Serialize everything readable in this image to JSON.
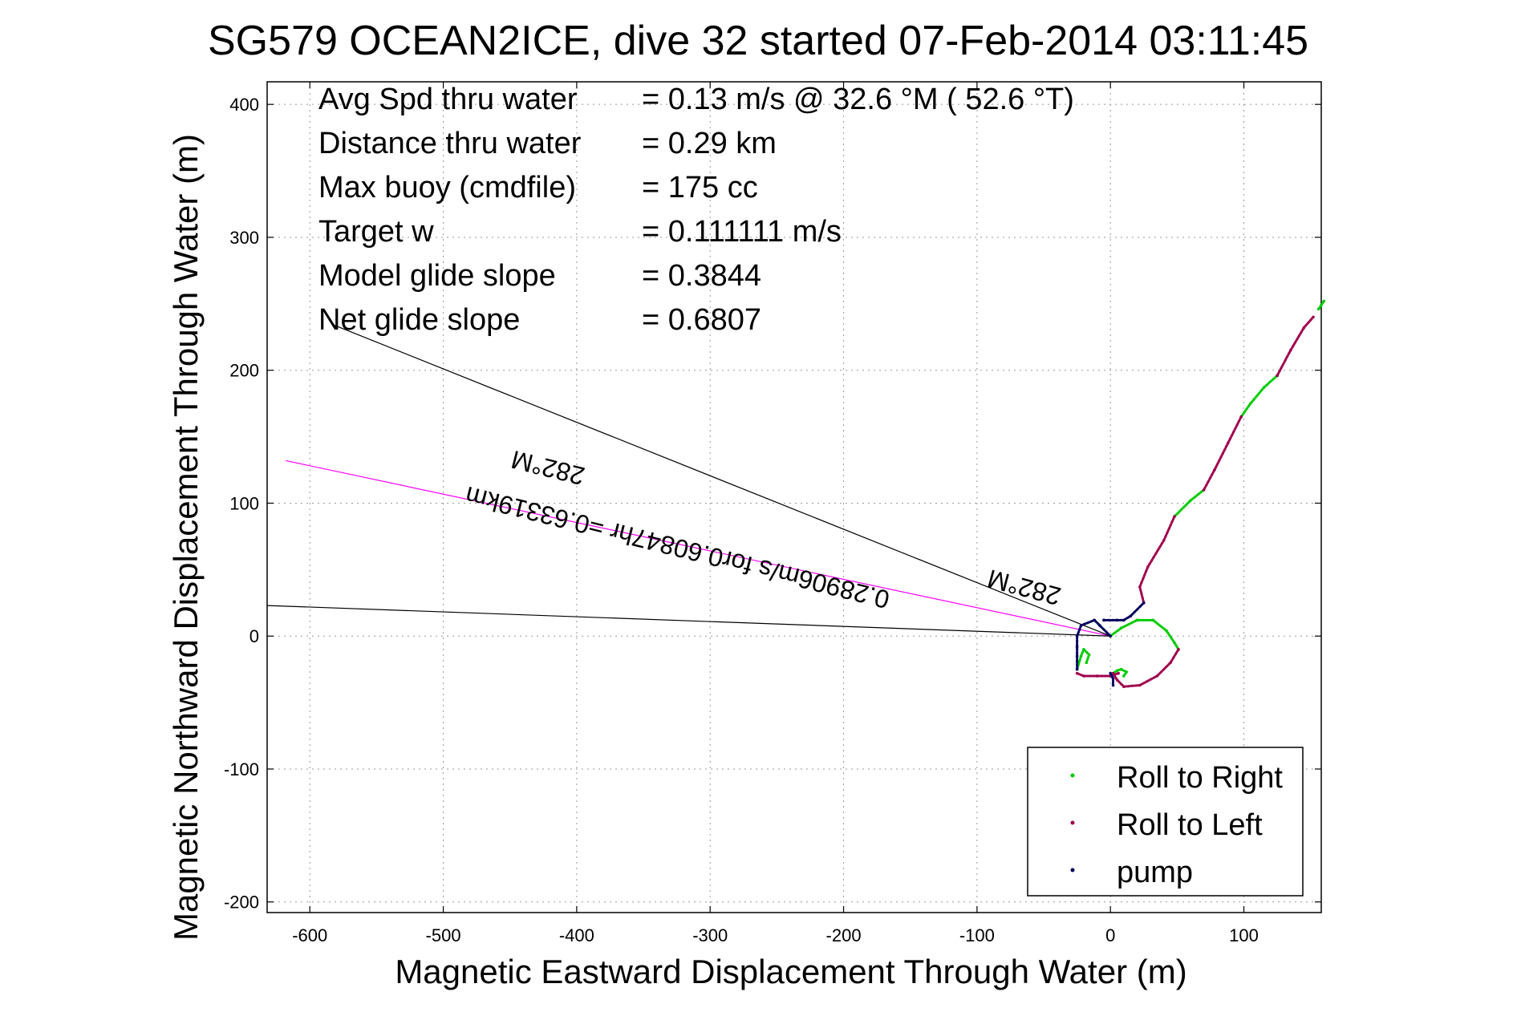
{
  "chart_data": {
    "type": "line",
    "title": "SG579 OCEAN2ICE, dive 32 started 07-Feb-2014 03:11:45",
    "xlabel": "Magnetic Eastward Displacement Through Water (m)",
    "ylabel": "Magnetic Northward Displacement Through Water (m)",
    "xlim": [
      -632,
      158
    ],
    "ylim": [
      -208,
      417
    ],
    "xticks": [
      -600,
      -500,
      -400,
      -300,
      -200,
      -100,
      0,
      100
    ],
    "yticks": [
      -200,
      -100,
      0,
      100,
      200,
      300,
      400
    ],
    "grid": true,
    "legend_position": "bottom-right",
    "stats": [
      {
        "label": "Avg Spd thru water",
        "value": "=  0.13 m/s @   32.6 °M ( 52.6 °T)"
      },
      {
        "label": "Distance thru water",
        "value": "=  0.29 km"
      },
      {
        "label": "Max buoy (cmdfile)",
        "value": "= 175 cc"
      },
      {
        "label": "Target w",
        "value": "= 0.111111 m/s"
      },
      {
        "label": "Model glide slope",
        "value": "= 0.3844"
      },
      {
        "label": "Net glide slope",
        "value": "= 0.6807"
      }
    ],
    "annotations": [
      {
        "text": "282°M",
        "x": -63,
        "y": 43,
        "angle": 195
      },
      {
        "text": "0.28906m/s for0.60847hr =0.63319km",
        "x": -323,
        "y": 73,
        "angle": 194
      },
      {
        "text": "282°M",
        "x": -420,
        "y": 133,
        "angle": 194
      }
    ],
    "reference_lines": [
      {
        "color": "#ff00ff",
        "points": [
          [
            0,
            0
          ],
          [
            -618,
            132
          ]
        ]
      },
      {
        "color": "#000000",
        "points": [
          [
            0,
            0
          ],
          [
            -582,
            234
          ]
        ]
      },
      {
        "color": "#000000",
        "points": [
          [
            0,
            0
          ],
          [
            -632,
            23
          ]
        ]
      }
    ],
    "series": [
      {
        "name": "Roll to Right",
        "color": "#00cc00",
        "segments": [
          [
            [
              0,
              0
            ],
            [
              8,
              6
            ],
            [
              20,
              12
            ],
            [
              32,
              12
            ],
            [
              42,
              4
            ],
            [
              48,
              -5
            ],
            [
              51,
              -10
            ]
          ],
          [
            [
              2,
              -28
            ],
            [
              5,
              -26
            ],
            [
              8,
              -25
            ],
            [
              12,
              -27
            ],
            [
              10,
              -30
            ]
          ],
          [
            [
              -25,
              -25
            ],
            [
              -22,
              -15
            ],
            [
              -20,
              -10
            ],
            [
              -16,
              -14
            ],
            [
              -18,
              -20
            ]
          ],
          [
            [
              48,
              90
            ],
            [
              60,
              102
            ],
            [
              70,
              110
            ]
          ],
          [
            [
              98,
              165
            ],
            [
              105,
              175
            ],
            [
              115,
              187
            ],
            [
              125,
              196
            ]
          ],
          [
            [
              160,
              252
            ],
            [
              158,
              249
            ],
            [
              156,
              246
            ]
          ]
        ]
      },
      {
        "name": "Roll to Left",
        "color": "#a0004e",
        "segments": [
          [
            [
              51,
              -10
            ],
            [
              45,
              -20
            ],
            [
              35,
              -30
            ],
            [
              22,
              -37
            ],
            [
              10,
              -38
            ],
            [
              5,
              -33
            ],
            [
              2,
              -28
            ]
          ],
          [
            [
              -25,
              -28
            ],
            [
              -20,
              -30
            ],
            [
              -10,
              -30
            ],
            [
              0,
              -30
            ],
            [
              6,
              -28
            ]
          ],
          [
            [
              25,
              25
            ],
            [
              22,
              37
            ],
            [
              28,
              52
            ],
            [
              40,
              72
            ],
            [
              48,
              90
            ]
          ],
          [
            [
              70,
              110
            ],
            [
              78,
              125
            ],
            [
              88,
              145
            ],
            [
              98,
              165
            ]
          ],
          [
            [
              125,
              196
            ],
            [
              135,
              215
            ],
            [
              145,
              232
            ],
            [
              152,
              240
            ]
          ]
        ]
      },
      {
        "name": "pump",
        "color": "#000060",
        "segments": [
          [
            [
              0,
              0
            ],
            [
              -8,
              8
            ],
            [
              -12,
              12
            ],
            [
              -22,
              8
            ],
            [
              -25,
              0
            ],
            [
              -25,
              -8
            ],
            [
              -25,
              -15
            ],
            [
              -25,
              -25
            ]
          ],
          [
            [
              -5,
              12
            ],
            [
              5,
              12
            ],
            [
              10,
              12
            ],
            [
              15,
              15
            ],
            [
              25,
              25
            ]
          ],
          [
            [
              0,
              -28
            ],
            [
              2,
              -32
            ],
            [
              2,
              -37
            ]
          ]
        ]
      }
    ]
  }
}
